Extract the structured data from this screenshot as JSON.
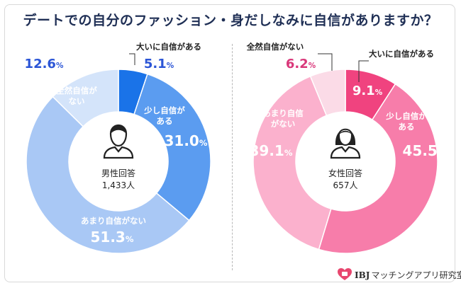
{
  "title": "デートでの自分のファッション・身だしなみに自信がありますか？",
  "logo_text": "マッチングアプリ研究室",
  "logo_brand": "IBJ",
  "colors": {
    "male": [
      "#1a73e8",
      "#5b9cf0",
      "#a9c8f5",
      "#d4e4fa"
    ],
    "female": [
      "#f0437f",
      "#f77daa",
      "#fbb1cd",
      "#fbdbe7"
    ],
    "accent": "#2b55d6",
    "accent_female": "#d9387a"
  },
  "chart_data": [
    {
      "type": "pie",
      "center_label": "男性回答",
      "center_count": "1,433人",
      "icon": "male-user-icon",
      "slices": [
        {
          "label": "大いに自信がある",
          "value": 5.1
        },
        {
          "label": "少し自信がある",
          "value": 31.0
        },
        {
          "label": "あまり自信がない",
          "value": 51.3
        },
        {
          "label": "全然自信がない",
          "value": 12.6
        }
      ]
    },
    {
      "type": "pie",
      "center_label": "女性回答",
      "center_count": "657人",
      "icon": "female-user-icon",
      "slices": [
        {
          "label": "大いに自信がある",
          "value": 9.1
        },
        {
          "label": "少し自信がある",
          "value": 45.5
        },
        {
          "label": "あまり自信がない",
          "value": 39.1
        },
        {
          "label": "全然自信がない",
          "value": 6.2
        }
      ]
    }
  ]
}
